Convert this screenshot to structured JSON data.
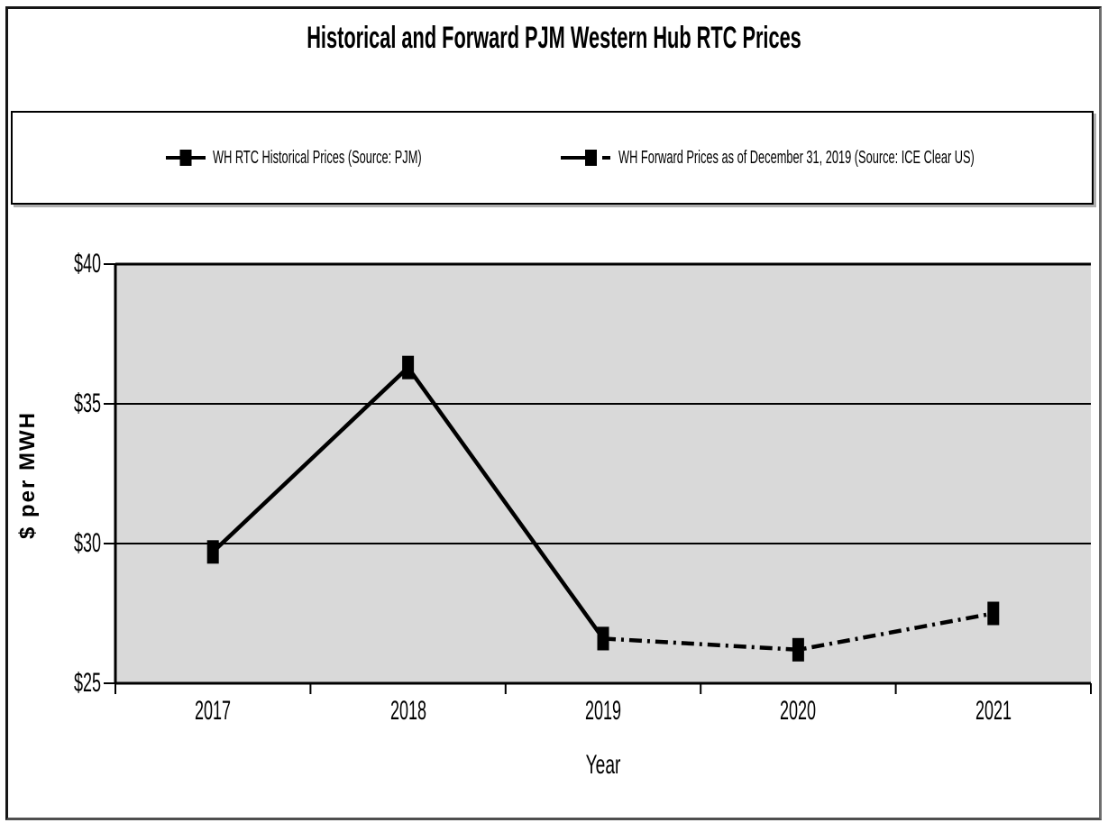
{
  "chart_data": {
    "type": "line",
    "title": "Historical and Forward PJM Western Hub RTC Prices",
    "xlabel": "Year",
    "ylabel": "$ per MWH",
    "categories": [
      "2017",
      "2018",
      "2019",
      "2020",
      "2021"
    ],
    "ylim": [
      25,
      40
    ],
    "yticks": [
      {
        "value": 25,
        "label": "$25"
      },
      {
        "value": 30,
        "label": "$30"
      },
      {
        "value": 35,
        "label": "$35"
      },
      {
        "value": 40,
        "label": "$40"
      }
    ],
    "grid": "horizontal",
    "legend_position": "top",
    "plot_background": "#d9d9d9",
    "series_color": "#000000",
    "series": [
      {
        "name": "WH RTC Historical Prices (Source: PJM)",
        "line_style": "solid",
        "marker": "square",
        "points": [
          {
            "x": "2017",
            "y": 29.7
          },
          {
            "x": "2018",
            "y": 36.3
          },
          {
            "x": "2019",
            "y": 26.6
          }
        ]
      },
      {
        "name": "WH Forward Prices as of December 31, 2019 (Source: ICE Clear US)",
        "line_style": "dash-dot",
        "marker": "square",
        "points": [
          {
            "x": "2019",
            "y": 26.6
          },
          {
            "x": "2020",
            "y": 26.2
          },
          {
            "x": "2021",
            "y": 27.5
          }
        ]
      }
    ]
  }
}
